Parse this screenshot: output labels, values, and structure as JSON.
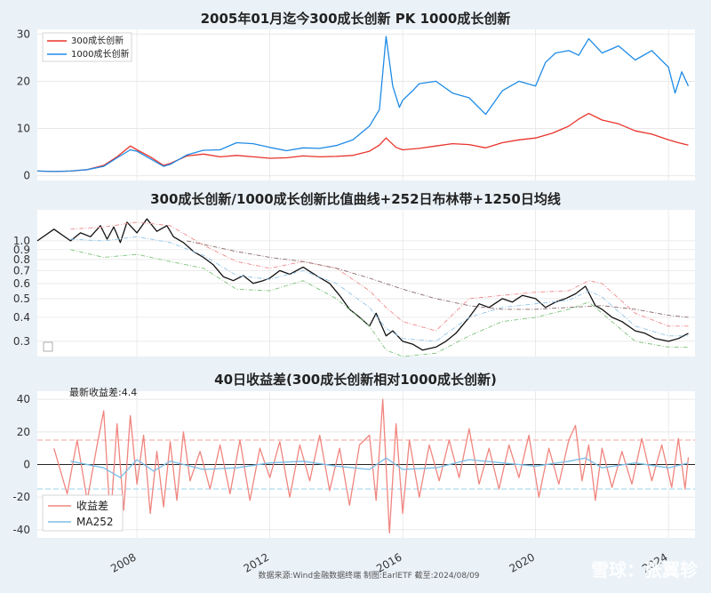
{
  "chart_data": [
    {
      "type": "line",
      "title": "2005年01月迄今300成长创新 PK 1000成长创新",
      "xlim": [
        2005.0,
        2024.8
      ],
      "ylim": [
        -1,
        31
      ],
      "yticks": [
        0,
        10,
        20,
        30
      ],
      "grid": true,
      "legend_placement": "top-left",
      "series": [
        {
          "name": "300成长创新",
          "color": "#e8332a",
          "x": [
            2005.0,
            2005.5,
            2006.0,
            2006.5,
            2007.0,
            2007.4,
            2007.8,
            2008.0,
            2008.4,
            2008.8,
            2009.0,
            2009.5,
            2010.0,
            2010.5,
            2011.0,
            2011.5,
            2012.0,
            2012.5,
            2013.0,
            2013.5,
            2014.0,
            2014.5,
            2015.0,
            2015.3,
            2015.5,
            2015.8,
            2016.0,
            2016.5,
            2017.0,
            2017.5,
            2018.0,
            2018.5,
            2019.0,
            2019.5,
            2020.0,
            2020.5,
            2021.0,
            2021.3,
            2021.6,
            2022.0,
            2022.5,
            2023.0,
            2023.5,
            2024.0,
            2024.3,
            2024.6
          ],
          "y": [
            1.0,
            0.9,
            1.0,
            1.3,
            2.2,
            4.0,
            6.3,
            5.5,
            4.0,
            2.2,
            2.6,
            4.2,
            4.6,
            4.0,
            4.3,
            4.0,
            3.7,
            3.8,
            4.2,
            4.0,
            4.1,
            4.3,
            5.2,
            6.5,
            8.0,
            6.0,
            5.5,
            5.8,
            6.3,
            6.8,
            6.6,
            5.9,
            7.0,
            7.6,
            8.0,
            9.0,
            10.5,
            12.0,
            13.2,
            11.8,
            11.0,
            9.5,
            8.8,
            7.6,
            7.0,
            6.5
          ]
        },
        {
          "name": "1000成长创新",
          "color": "#1f8be6",
          "x": [
            2005.0,
            2005.5,
            2006.0,
            2006.5,
            2007.0,
            2007.4,
            2007.8,
            2008.0,
            2008.4,
            2008.8,
            2009.0,
            2009.5,
            2010.0,
            2010.5,
            2011.0,
            2011.5,
            2012.0,
            2012.5,
            2013.0,
            2013.5,
            2014.0,
            2014.5,
            2015.0,
            2015.3,
            2015.5,
            2015.7,
            2015.9,
            2016.0,
            2016.3,
            2016.5,
            2017.0,
            2017.5,
            2018.0,
            2018.5,
            2019.0,
            2019.5,
            2020.0,
            2020.3,
            2020.6,
            2021.0,
            2021.3,
            2021.6,
            2022.0,
            2022.5,
            2023.0,
            2023.5,
            2024.0,
            2024.2,
            2024.4,
            2024.6
          ],
          "y": [
            1.0,
            0.9,
            1.0,
            1.3,
            2.0,
            3.8,
            5.5,
            5.2,
            3.6,
            2.0,
            2.4,
            4.4,
            5.4,
            5.5,
            7.0,
            6.8,
            6.0,
            5.3,
            5.9,
            5.8,
            6.4,
            7.6,
            10.5,
            14.0,
            29.5,
            19.0,
            14.5,
            16.0,
            18.0,
            19.5,
            20.0,
            17.5,
            16.5,
            13.0,
            18.0,
            20.0,
            19.0,
            24.0,
            26.0,
            26.5,
            25.5,
            29.0,
            26.0,
            27.5,
            24.5,
            26.5,
            23.0,
            17.5,
            22.0,
            19.0
          ]
        }
      ]
    },
    {
      "type": "line",
      "title": "300成长创新/1000成长创新比值曲线+252日布林带+1250日均线",
      "xlim": [
        2005.0,
        2024.8
      ],
      "ylim": [
        0.25,
        1.45
      ],
      "yscale": "log",
      "yticks": [
        0.3,
        0.4,
        0.5,
        0.6,
        0.7,
        0.8,
        0.9,
        1.0
      ],
      "ytick_labels": [
        "0.3",
        "0.4",
        "0.5",
        "0.6",
        "0.7",
        "0.8",
        "0.9",
        "1.0"
      ],
      "grid": true,
      "series": [
        {
          "color": "#111111",
          "x": [
            2005.0,
            2005.5,
            2006.0,
            2006.3,
            2006.6,
            2006.9,
            2007.1,
            2007.3,
            2007.5,
            2007.7,
            2008.0,
            2008.3,
            2008.6,
            2008.9,
            2009.1,
            2009.4,
            2009.7,
            2010.0,
            2010.3,
            2010.6,
            2010.9,
            2011.2,
            2011.5,
            2011.8,
            2012.0,
            2012.3,
            2012.6,
            2013.0,
            2013.4,
            2013.8,
            2014.1,
            2014.4,
            2014.7,
            2015.0,
            2015.2,
            2015.5,
            2015.7,
            2016.0,
            2016.3,
            2016.6,
            2017.0,
            2017.3,
            2017.6,
            2018.0,
            2018.3,
            2018.6,
            2019.0,
            2019.3,
            2019.6,
            2020.0,
            2020.3,
            2020.6,
            2020.9,
            2021.2,
            2021.5,
            2021.8,
            2022.0,
            2022.3,
            2022.6,
            2023.0,
            2023.3,
            2023.6,
            2024.0,
            2024.3,
            2024.6
          ],
          "y": [
            1.0,
            1.15,
            1.0,
            1.1,
            1.05,
            1.2,
            1.02,
            1.18,
            0.98,
            1.25,
            1.1,
            1.3,
            1.12,
            1.2,
            1.05,
            0.98,
            0.88,
            0.82,
            0.75,
            0.65,
            0.62,
            0.66,
            0.6,
            0.62,
            0.64,
            0.7,
            0.67,
            0.73,
            0.66,
            0.6,
            0.52,
            0.44,
            0.4,
            0.36,
            0.42,
            0.32,
            0.34,
            0.3,
            0.29,
            0.27,
            0.28,
            0.3,
            0.33,
            0.4,
            0.47,
            0.45,
            0.5,
            0.48,
            0.52,
            0.5,
            0.45,
            0.48,
            0.5,
            0.53,
            0.58,
            0.46,
            0.44,
            0.4,
            0.38,
            0.34,
            0.33,
            0.31,
            0.3,
            0.31,
            0.33
          ]
        },
        {
          "color": "#f08a8a",
          "style": "dashdot",
          "x": [
            2006.0,
            2007.0,
            2008.0,
            2009.0,
            2010.0,
            2011.0,
            2012.0,
            2013.0,
            2014.0,
            2015.0,
            2015.5,
            2016.0,
            2017.0,
            2018.0,
            2019.0,
            2020.0,
            2021.0,
            2021.6,
            2022.0,
            2023.0,
            2024.0,
            2024.6
          ],
          "y": [
            1.15,
            1.18,
            1.25,
            1.2,
            0.95,
            0.78,
            0.72,
            0.78,
            0.72,
            0.55,
            0.45,
            0.38,
            0.34,
            0.5,
            0.52,
            0.54,
            0.55,
            0.62,
            0.6,
            0.42,
            0.36,
            0.36
          ]
        },
        {
          "color": "#7cc47c",
          "style": "dashdot",
          "x": [
            2006.0,
            2007.0,
            2008.0,
            2009.0,
            2010.0,
            2011.0,
            2012.0,
            2013.0,
            2014.0,
            2015.0,
            2015.5,
            2016.0,
            2017.0,
            2018.0,
            2019.0,
            2020.0,
            2021.0,
            2021.6,
            2022.0,
            2023.0,
            2024.0,
            2024.6
          ],
          "y": [
            0.9,
            0.82,
            0.85,
            0.78,
            0.72,
            0.56,
            0.55,
            0.62,
            0.5,
            0.36,
            0.27,
            0.25,
            0.26,
            0.32,
            0.38,
            0.4,
            0.44,
            0.48,
            0.42,
            0.3,
            0.28,
            0.28
          ]
        },
        {
          "color": "#8fc4e8",
          "style": "dashdot",
          "x": [
            2006.0,
            2007.0,
            2008.0,
            2009.0,
            2010.0,
            2011.0,
            2012.0,
            2013.0,
            2014.0,
            2015.0,
            2015.5,
            2016.0,
            2017.0,
            2018.0,
            2019.0,
            2020.0,
            2021.0,
            2021.6,
            2022.0,
            2023.0,
            2024.0,
            2024.6
          ],
          "y": [
            1.02,
            1.0,
            1.05,
            0.98,
            0.84,
            0.66,
            0.63,
            0.7,
            0.6,
            0.45,
            0.35,
            0.31,
            0.3,
            0.4,
            0.45,
            0.47,
            0.49,
            0.55,
            0.51,
            0.36,
            0.32,
            0.32
          ]
        },
        {
          "color": "#8a6a6a",
          "style": "dashdot",
          "x": [
            2009.5,
            2011.0,
            2012.0,
            2013.0,
            2014.0,
            2015.0,
            2016.0,
            2017.0,
            2018.0,
            2019.0,
            2020.0,
            2021.0,
            2022.0,
            2023.0,
            2024.0,
            2024.6
          ],
          "y": [
            1.0,
            0.88,
            0.82,
            0.78,
            0.72,
            0.64,
            0.56,
            0.5,
            0.46,
            0.44,
            0.44,
            0.45,
            0.46,
            0.44,
            0.41,
            0.4
          ]
        }
      ]
    },
    {
      "type": "line",
      "title": "40日收益差(300成长创新相对1000成长创新)",
      "annotation": "最新收益差:4.4",
      "xlim": [
        2005.0,
        2024.8
      ],
      "ylim": [
        -45,
        45
      ],
      "yticks": [
        -40,
        -20,
        0,
        20,
        40
      ],
      "xticks": [
        2008,
        2012,
        2016,
        2020,
        2024
      ],
      "hlines": [
        {
          "y": 15,
          "color": "#f2a0a0"
        },
        {
          "y": -15,
          "color": "#9ad2ee"
        },
        {
          "y": 0,
          "color": "#222222"
        }
      ],
      "grid": true,
      "legend_placement": "bottom-left",
      "series": [
        {
          "name": "收益差",
          "color": "#f0857f",
          "x": [
            2005.5,
            2005.9,
            2006.2,
            2006.5,
            2006.8,
            2007.0,
            2007.2,
            2007.4,
            2007.6,
            2007.8,
            2008.0,
            2008.2,
            2008.4,
            2008.6,
            2008.8,
            2009.0,
            2009.2,
            2009.4,
            2009.6,
            2009.9,
            2010.2,
            2010.5,
            2010.8,
            2011.1,
            2011.4,
            2011.7,
            2012.0,
            2012.3,
            2012.6,
            2012.9,
            2013.2,
            2013.5,
            2013.8,
            2014.1,
            2014.4,
            2014.7,
            2015.0,
            2015.2,
            2015.4,
            2015.6,
            2015.8,
            2016.0,
            2016.2,
            2016.5,
            2016.8,
            2017.1,
            2017.4,
            2017.7,
            2018.0,
            2018.3,
            2018.6,
            2018.9,
            2019.2,
            2019.5,
            2019.8,
            2020.1,
            2020.4,
            2020.7,
            2021.0,
            2021.2,
            2021.4,
            2021.6,
            2021.8,
            2022.0,
            2022.3,
            2022.6,
            2022.9,
            2023.2,
            2023.5,
            2023.8,
            2024.1,
            2024.3,
            2024.5,
            2024.6
          ],
          "y": [
            10,
            -18,
            15,
            -22,
            12,
            33,
            -35,
            25,
            -28,
            30,
            -12,
            18,
            -30,
            8,
            -26,
            14,
            -22,
            20,
            -10,
            8,
            -15,
            12,
            -18,
            15,
            -22,
            10,
            -8,
            14,
            -20,
            12,
            -10,
            18,
            -16,
            10,
            -25,
            12,
            18,
            -22,
            40,
            -42,
            25,
            -30,
            15,
            -20,
            12,
            -10,
            15,
            -8,
            22,
            -12,
            10,
            -15,
            12,
            -8,
            18,
            -20,
            10,
            -12,
            15,
            24,
            -10,
            12,
            -22,
            10,
            -14,
            8,
            -12,
            16,
            -10,
            12,
            -14,
            16,
            -15,
            4.4
          ]
        },
        {
          "name": "MA252",
          "color": "#7bbde6",
          "x": [
            2006.0,
            2007.0,
            2007.5,
            2008.0,
            2008.5,
            2009.0,
            2010.0,
            2011.0,
            2012.0,
            2013.0,
            2014.0,
            2015.0,
            2015.5,
            2016.0,
            2017.0,
            2018.0,
            2019.0,
            2020.0,
            2021.0,
            2021.5,
            2022.0,
            2023.0,
            2024.0,
            2024.6
          ],
          "y": [
            2,
            -2,
            -8,
            3,
            -4,
            2,
            -3,
            -2,
            1,
            2,
            -1,
            -3,
            4,
            -3,
            -2,
            3,
            1,
            -1,
            2,
            4,
            -2,
            1,
            -2,
            1
          ]
        }
      ]
    }
  ],
  "footer": "数据来源:Wind金融数据终端  制图:EarlETF 截至:2024/08/09",
  "watermark": "雪球：张翼轸",
  "colors": {
    "background": "#eaf1f7",
    "panel": "#ffffff"
  }
}
